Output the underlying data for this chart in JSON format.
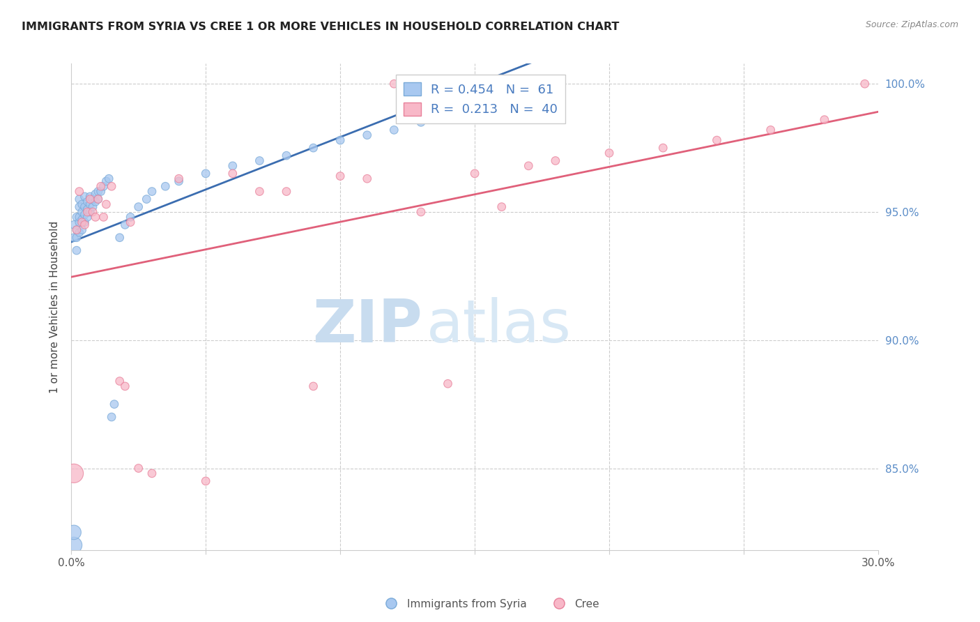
{
  "title": "IMMIGRANTS FROM SYRIA VS CREE 1 OR MORE VEHICLES IN HOUSEHOLD CORRELATION CHART",
  "source": "Source: ZipAtlas.com",
  "xlabel": "",
  "ylabel": "1 or more Vehicles in Household",
  "xlim": [
    0.0,
    0.3
  ],
  "ylim": [
    0.818,
    1.008
  ],
  "x_ticks": [
    0.0,
    0.05,
    0.1,
    0.15,
    0.2,
    0.25,
    0.3
  ],
  "x_tick_labels": [
    "0.0%",
    "",
    "",
    "",
    "",
    "",
    "30.0%"
  ],
  "y_ticks": [
    0.85,
    0.9,
    0.95,
    1.0
  ],
  "y_tick_labels": [
    "85.0%",
    "90.0%",
    "95.0%",
    "100.0%"
  ],
  "blue_color": "#A8C8F0",
  "blue_edge_color": "#7AAAD8",
  "pink_color": "#F8B8C8",
  "pink_edge_color": "#E8809A",
  "blue_line_color": "#3B6DB0",
  "pink_line_color": "#E0607A",
  "legend_blue_label": "R = 0.454   N =  61",
  "legend_pink_label": "R =  0.213   N =  40",
  "legend_blue_series": "Immigrants from Syria",
  "legend_pink_series": "Cree",
  "watermark_zip": "ZIP",
  "watermark_atlas": "atlas",
  "syria_x": [
    0.001,
    0.001,
    0.001,
    0.001,
    0.002,
    0.002,
    0.002,
    0.002,
    0.003,
    0.003,
    0.003,
    0.003,
    0.003,
    0.004,
    0.004,
    0.004,
    0.004,
    0.005,
    0.005,
    0.005,
    0.005,
    0.006,
    0.006,
    0.006,
    0.007,
    0.007,
    0.007,
    0.008,
    0.008,
    0.009,
    0.009,
    0.01,
    0.01,
    0.011,
    0.012,
    0.013,
    0.014,
    0.015,
    0.016,
    0.018,
    0.02,
    0.022,
    0.025,
    0.028,
    0.03,
    0.035,
    0.04,
    0.05,
    0.06,
    0.07,
    0.08,
    0.09,
    0.1,
    0.11,
    0.12,
    0.13,
    0.14,
    0.145,
    0.15,
    0.155,
    0.16
  ],
  "syria_y": [
    0.82,
    0.825,
    0.94,
    0.945,
    0.935,
    0.94,
    0.943,
    0.948,
    0.942,
    0.946,
    0.948,
    0.952,
    0.955,
    0.943,
    0.947,
    0.95,
    0.953,
    0.946,
    0.949,
    0.952,
    0.956,
    0.948,
    0.951,
    0.954,
    0.95,
    0.953,
    0.956,
    0.952,
    0.955,
    0.954,
    0.957,
    0.955,
    0.958,
    0.958,
    0.96,
    0.962,
    0.963,
    0.87,
    0.875,
    0.94,
    0.945,
    0.948,
    0.952,
    0.955,
    0.958,
    0.96,
    0.962,
    0.965,
    0.968,
    0.97,
    0.972,
    0.975,
    0.978,
    0.98,
    0.982,
    0.985,
    1.0,
    1.0,
    1.0,
    1.0,
    1.0
  ],
  "cree_x": [
    0.001,
    0.002,
    0.003,
    0.004,
    0.005,
    0.006,
    0.007,
    0.008,
    0.009,
    0.01,
    0.011,
    0.012,
    0.013,
    0.015,
    0.018,
    0.02,
    0.022,
    0.025,
    0.03,
    0.04,
    0.05,
    0.06,
    0.07,
    0.08,
    0.09,
    0.1,
    0.11,
    0.12,
    0.13,
    0.14,
    0.15,
    0.16,
    0.17,
    0.18,
    0.2,
    0.22,
    0.24,
    0.26,
    0.28,
    0.295
  ],
  "cree_y": [
    0.848,
    0.943,
    0.958,
    0.946,
    0.945,
    0.95,
    0.955,
    0.95,
    0.948,
    0.955,
    0.96,
    0.948,
    0.953,
    0.96,
    0.884,
    0.882,
    0.946,
    0.85,
    0.848,
    0.963,
    0.845,
    0.965,
    0.958,
    0.958,
    0.882,
    0.964,
    0.963,
    1.0,
    0.95,
    0.883,
    0.965,
    0.952,
    0.968,
    0.97,
    0.973,
    0.975,
    0.978,
    0.982,
    0.986,
    1.0
  ]
}
